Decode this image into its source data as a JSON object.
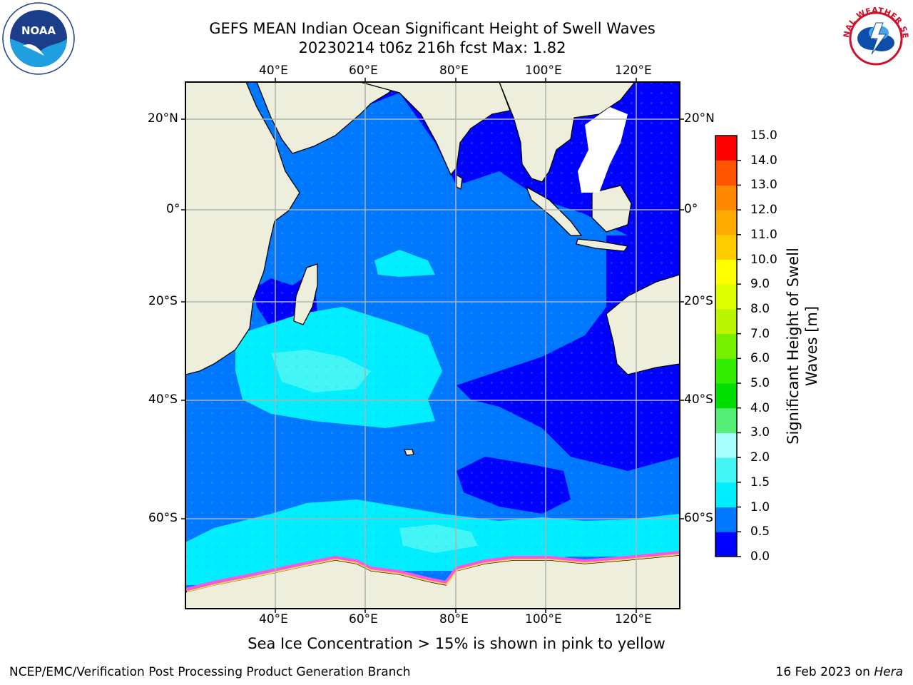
{
  "header": {
    "title_line1": "GEFS MEAN Indian Ocean Significant Height of Swell Waves",
    "title_line2": "20230214 t06z 216h fcst   Max: 1.82"
  },
  "logos": {
    "left": "NOAA",
    "right": "NATIONAL WEATHER SERVICE",
    "left_ring": "NATIONAL OCEANIC AND ATMOSPHERIC ADMINISTRATION · U.S. DEPARTMENT OF COMMERCE"
  },
  "map": {
    "projection": "lat-lon",
    "lon_range": [
      20,
      130
    ],
    "lat_range": [
      -70,
      28
    ],
    "lon_ticks": [
      {
        "value": 40,
        "label": "40°E"
      },
      {
        "value": 60,
        "label": "60°E"
      },
      {
        "value": 80,
        "label": "80°E"
      },
      {
        "value": 100,
        "label": "100°E"
      },
      {
        "value": 120,
        "label": "120°E"
      }
    ],
    "lat_ticks": [
      {
        "value": 20,
        "label": "20°N"
      },
      {
        "value": 0,
        "label": "0°"
      },
      {
        "value": -20,
        "label": "20°S"
      },
      {
        "value": -40,
        "label": "40°S"
      },
      {
        "value": -60,
        "label": "60°S"
      }
    ],
    "grid": true,
    "colors": {
      "land": "#eeeedd",
      "coast": "#000000",
      "grid": "#b0b0b0",
      "ice": "#ff55dd"
    }
  },
  "colorbar": {
    "title": "Significant Height of Swell Waves [m]",
    "levels": [
      {
        "value": "0.0",
        "color": "#0000ff"
      },
      {
        "value": "0.5",
        "color": "#0077ff"
      },
      {
        "value": "1.0",
        "color": "#00eeff"
      },
      {
        "value": "1.5",
        "color": "#44f5f5"
      },
      {
        "value": "2.0",
        "color": "#aaffff"
      },
      {
        "value": "3.0",
        "color": "#55ee77"
      },
      {
        "value": "4.0",
        "color": "#00dd00"
      },
      {
        "value": "5.0",
        "color": "#33ee00"
      },
      {
        "value": "6.0",
        "color": "#77f000"
      },
      {
        "value": "7.0",
        "color": "#bbf500"
      },
      {
        "value": "8.0",
        "color": "#ddff00"
      },
      {
        "value": "9.0",
        "color": "#ffff00"
      },
      {
        "value": "10.0",
        "color": "#ffcc00"
      },
      {
        "value": "11.0",
        "color": "#ffaa00"
      },
      {
        "value": "12.0",
        "color": "#ff8800"
      },
      {
        "value": "13.0",
        "color": "#ff5500"
      },
      {
        "value": "14.0",
        "color": "#ff2200"
      },
      {
        "value": "15.0",
        "color": ""
      }
    ]
  },
  "caption": "Sea Ice Concentration > 15% is shown in pink to yellow",
  "footer": {
    "left": "NCEP/EMC/Verification Post Processing Product Generation Branch",
    "right_date": "16 Feb 2023 on ",
    "right_host": "Hera"
  }
}
